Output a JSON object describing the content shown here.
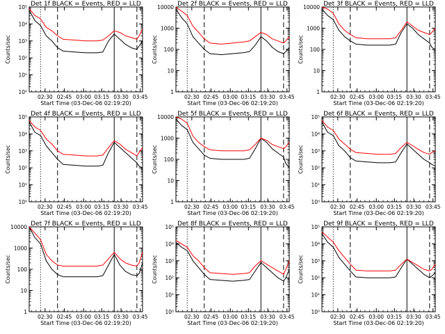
{
  "figure": {
    "xlabel": "Start Time (03-Dec-06 02:19:20)",
    "ylabel": "Counts/sec",
    "xticks": [
      "02:30",
      "02:45",
      "03:00",
      "03:15",
      "03:30",
      "03:45"
    ],
    "xlim": [
      0,
      100
    ],
    "xtick_positions": [
      14,
      31,
      48,
      64,
      81,
      98
    ],
    "markers": {
      "dotted": [
        10,
        100
      ],
      "dashed": [
        25,
        95
      ],
      "solid": [
        75
      ]
    },
    "colors": {
      "events": "#000000",
      "lld": "#ff0000"
    }
  },
  "chart_data": [
    {
      "type": "line",
      "title": "Det 1f BLACK = Events, RED = LLD",
      "ylog": [
        0,
        5
      ],
      "yticks": [
        "10⁰",
        "10¹",
        "10²",
        "10³",
        "10⁴",
        "10⁵"
      ],
      "x": [
        0,
        5,
        10,
        15,
        20,
        25,
        30,
        40,
        50,
        60,
        65,
        70,
        75,
        80,
        85,
        90,
        95,
        97,
        100
      ],
      "series": [
        {
          "name": "Events",
          "values": [
            4.8,
            4.2,
            3.9,
            3.3,
            3.0,
            2.6,
            2.4,
            2.35,
            2.3,
            2.3,
            2.35,
            3.0,
            3.4,
            3.1,
            2.8,
            2.6,
            2.5,
            2.7,
            3.0
          ]
        },
        {
          "name": "LLD",
          "values": [
            4.9,
            4.5,
            4.3,
            3.8,
            3.6,
            3.3,
            3.1,
            3.05,
            3.0,
            3.0,
            3.05,
            3.3,
            3.6,
            3.5,
            3.3,
            3.2,
            3.1,
            3.3,
            3.7
          ]
        }
      ]
    },
    {
      "type": "line",
      "title": "Det 2f BLACK = Events, RED = LLD",
      "ylog": [
        0,
        4
      ],
      "yticks": [
        "1",
        "10",
        "100",
        "1000",
        "10000"
      ],
      "x": [
        0,
        5,
        10,
        15,
        20,
        25,
        30,
        40,
        50,
        60,
        65,
        70,
        75,
        80,
        85,
        90,
        95,
        97,
        100
      ],
      "series": [
        {
          "name": "Events",
          "values": [
            3.9,
            3.5,
            3.2,
            2.6,
            2.3,
            2.0,
            1.8,
            1.75,
            1.8,
            1.85,
            1.9,
            2.2,
            2.6,
            2.4,
            2.1,
            1.9,
            1.8,
            1.9,
            2.1
          ]
        },
        {
          "name": "LLD",
          "values": [
            4.0,
            3.8,
            3.6,
            3.1,
            2.8,
            2.5,
            2.3,
            2.25,
            2.3,
            2.35,
            2.4,
            2.6,
            2.8,
            2.7,
            2.5,
            2.4,
            2.3,
            2.4,
            2.6
          ]
        }
      ]
    },
    {
      "type": "line",
      "title": "Det 3f BLACK = Events, RED = LLD",
      "ylog": [
        0,
        4
      ],
      "yticks": [
        "1",
        "10",
        "100",
        "1000",
        "10000"
      ],
      "x": [
        0,
        5,
        10,
        15,
        20,
        25,
        30,
        40,
        50,
        60,
        65,
        70,
        75,
        80,
        85,
        90,
        95,
        97,
        100
      ],
      "series": [
        {
          "name": "Events",
          "values": [
            3.9,
            3.6,
            3.4,
            2.9,
            2.6,
            2.4,
            2.25,
            2.2,
            2.2,
            2.2,
            2.25,
            2.8,
            3.2,
            3.0,
            2.7,
            2.5,
            2.3,
            2.1,
            2.0
          ]
        },
        {
          "name": "LLD",
          "values": [
            4.0,
            3.9,
            3.7,
            3.2,
            2.9,
            2.7,
            2.55,
            2.5,
            2.5,
            2.5,
            2.55,
            2.9,
            3.3,
            3.1,
            2.9,
            2.8,
            2.7,
            2.8,
            3.0
          ]
        }
      ]
    },
    {
      "type": "line",
      "title": "Det 4f BLACK = Events, RED = LLD",
      "ylog": [
        0,
        5
      ],
      "yticks": [
        "10⁰",
        "10¹",
        "10²",
        "10³",
        "10⁴",
        "10⁵"
      ],
      "x": [
        0,
        5,
        10,
        15,
        20,
        25,
        30,
        40,
        50,
        60,
        65,
        70,
        75,
        80,
        85,
        90,
        95,
        97,
        100
      ],
      "series": [
        {
          "name": "Events",
          "values": [
            4.7,
            4.1,
            3.9,
            3.3,
            2.9,
            2.5,
            2.2,
            2.15,
            2.1,
            2.1,
            2.15,
            2.9,
            3.5,
            3.2,
            2.9,
            2.6,
            2.3,
            2.1,
            2.0
          ]
        },
        {
          "name": "LLD",
          "values": [
            4.8,
            4.4,
            4.2,
            3.7,
            3.4,
            3.0,
            2.8,
            2.75,
            2.7,
            2.7,
            2.75,
            3.2,
            3.6,
            3.4,
            3.1,
            2.9,
            2.7,
            2.9,
            3.2
          ]
        }
      ]
    },
    {
      "type": "line",
      "title": "Det 5f BLACK = Events, RED = LLD",
      "ylog": [
        0,
        4
      ],
      "yticks": [
        "1",
        "10",
        "100",
        "1000",
        "10000"
      ],
      "x": [
        0,
        5,
        10,
        15,
        20,
        25,
        30,
        40,
        50,
        60,
        65,
        70,
        75,
        80,
        85,
        90,
        95,
        97,
        100
      ],
      "series": [
        {
          "name": "Events",
          "values": [
            3.9,
            3.6,
            3.4,
            2.8,
            2.5,
            2.2,
            2.05,
            2.0,
            2.0,
            2.0,
            2.05,
            2.5,
            3.0,
            2.8,
            2.5,
            2.3,
            2.1,
            1.8,
            1.6
          ]
        },
        {
          "name": "LLD",
          "values": [
            4.0,
            3.9,
            3.7,
            3.1,
            2.8,
            2.6,
            2.45,
            2.4,
            2.4,
            2.4,
            2.45,
            2.7,
            3.0,
            2.9,
            2.7,
            2.6,
            2.5,
            2.6,
            2.8
          ]
        }
      ]
    },
    {
      "type": "line",
      "title": "Det 6f BLACK = Events, RED = LLD",
      "ylog": [
        0,
        5
      ],
      "yticks": [
        "10⁰",
        "10¹",
        "10²",
        "10³",
        "10⁴",
        "10⁵"
      ],
      "x": [
        0,
        5,
        10,
        15,
        20,
        25,
        30,
        40,
        50,
        60,
        65,
        70,
        75,
        80,
        85,
        90,
        95,
        97,
        100
      ],
      "series": [
        {
          "name": "Events",
          "values": [
            4.7,
            4.1,
            3.9,
            3.3,
            3.0,
            2.6,
            2.4,
            2.35,
            2.3,
            2.3,
            2.35,
            2.9,
            3.4,
            3.1,
            2.8,
            2.5,
            2.3,
            2.2,
            2.1
          ]
        },
        {
          "name": "LLD",
          "values": [
            4.8,
            4.4,
            4.2,
            3.7,
            3.4,
            3.1,
            2.9,
            2.85,
            2.8,
            2.8,
            2.85,
            3.2,
            3.5,
            3.3,
            3.1,
            2.9,
            2.8,
            2.9,
            3.0
          ]
        }
      ]
    },
    {
      "type": "line",
      "title": "Det 7f BLACK = Events, RED = LLD",
      "ylog": [
        0,
        4
      ],
      "yticks": [
        "1",
        "10",
        "100",
        "1000",
        "10000"
      ],
      "x": [
        0,
        5,
        10,
        15,
        20,
        25,
        30,
        40,
        50,
        60,
        65,
        70,
        75,
        80,
        85,
        90,
        95,
        97,
        100
      ],
      "series": [
        {
          "name": "Events",
          "values": [
            4.0,
            3.5,
            3.2,
            2.4,
            2.0,
            1.75,
            1.65,
            1.65,
            1.65,
            1.65,
            1.7,
            2.2,
            2.7,
            2.2,
            1.9,
            1.75,
            1.7,
            1.8,
            2.3
          ]
        },
        {
          "name": "LLD",
          "values": [
            4.0,
            3.7,
            3.4,
            2.7,
            2.4,
            2.2,
            2.15,
            2.15,
            2.15,
            2.15,
            2.2,
            2.5,
            2.8,
            2.5,
            2.3,
            2.2,
            2.15,
            2.3,
            2.8
          ]
        }
      ]
    },
    {
      "type": "line",
      "title": "Det 8f BLACK = Events, RED = LLD",
      "ylog": [
        0,
        5
      ],
      "yticks": [
        "10⁰",
        "10¹",
        "10²",
        "10³",
        "10⁴",
        "10⁵"
      ],
      "x": [
        0,
        5,
        10,
        15,
        20,
        25,
        30,
        40,
        50,
        60,
        65,
        70,
        75,
        80,
        85,
        90,
        95,
        97,
        100
      ],
      "series": [
        {
          "name": "Events",
          "values": [
            4.1,
            3.8,
            3.6,
            3.0,
            2.6,
            2.2,
            1.9,
            1.85,
            1.8,
            1.85,
            1.9,
            2.4,
            2.9,
            2.6,
            2.3,
            2.0,
            1.8,
            2.0,
            2.5
          ]
        },
        {
          "name": "LLD",
          "values": [
            4.2,
            4.0,
            3.8,
            3.3,
            3.0,
            2.6,
            2.3,
            2.25,
            2.2,
            2.25,
            2.3,
            2.7,
            3.0,
            2.8,
            2.6,
            2.4,
            2.2,
            2.5,
            3.0
          ]
        }
      ]
    },
    {
      "type": "line",
      "title": "Det 9f BLACK = Events, RED = LLD",
      "ylog": [
        0,
        5
      ],
      "yticks": [
        "10⁰",
        "10¹",
        "10²",
        "10³",
        "10⁴",
        "10⁵"
      ],
      "x": [
        0,
        5,
        10,
        15,
        20,
        25,
        30,
        40,
        50,
        60,
        65,
        70,
        75,
        80,
        85,
        90,
        95,
        97,
        100
      ],
      "series": [
        {
          "name": "Events",
          "values": [
            4.6,
            4.1,
            3.8,
            3.2,
            2.8,
            2.4,
            2.05,
            2.0,
            2.0,
            2.0,
            2.05,
            2.6,
            3.1,
            2.8,
            2.5,
            2.2,
            2.0,
            2.1,
            2.3
          ]
        },
        {
          "name": "LLD",
          "values": [
            4.7,
            4.4,
            4.1,
            3.6,
            3.2,
            2.8,
            2.45,
            2.4,
            2.4,
            2.4,
            2.45,
            2.8,
            3.1,
            2.9,
            2.7,
            2.5,
            2.4,
            2.5,
            2.8
          ]
        }
      ]
    }
  ]
}
